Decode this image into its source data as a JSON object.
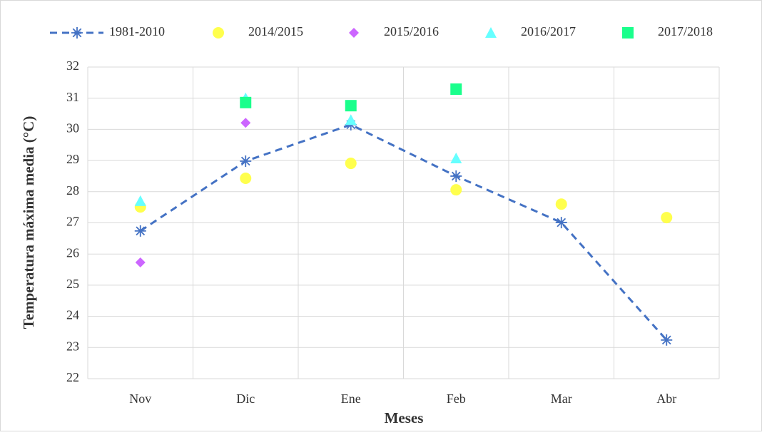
{
  "chart_data": {
    "type": "line",
    "x_label": "Meses",
    "y_label": "Temperatura máxima media (°C)",
    "categories": [
      "Nov",
      "Dic",
      "Ene",
      "Feb",
      "Mar",
      "Abr"
    ],
    "series": [
      {
        "name": "1981-2010",
        "color": "#4472c4",
        "marker": "star",
        "line": "dashed",
        "values": [
          26.74,
          28.98,
          30.15,
          28.5,
          27.01,
          23.24
        ]
      },
      {
        "name": "2014/2015",
        "color": "#ffff4d",
        "marker": "circle",
        "values": [
          27.51,
          28.43,
          28.91,
          28.06,
          27.6,
          27.17
        ]
      },
      {
        "name": "2015/2016",
        "color": "#cc66ff",
        "marker": "diamond",
        "values": [
          25.73,
          30.21,
          null,
          null,
          null,
          null
        ]
      },
      {
        "name": "2016/2017",
        "color": "#66ffff",
        "marker": "triangle",
        "values": [
          27.7,
          31.0,
          30.3,
          29.07,
          null,
          null
        ]
      },
      {
        "name": "2017/2018",
        "color": "#1aff8c",
        "marker": "square",
        "values": [
          null,
          30.86,
          30.76,
          31.29,
          null,
          null
        ]
      }
    ],
    "ylim": [
      22,
      32
    ],
    "yticks": [
      22,
      23,
      24,
      25,
      26,
      27,
      28,
      29,
      30,
      31,
      32
    ],
    "grid": true,
    "legend": "top"
  }
}
